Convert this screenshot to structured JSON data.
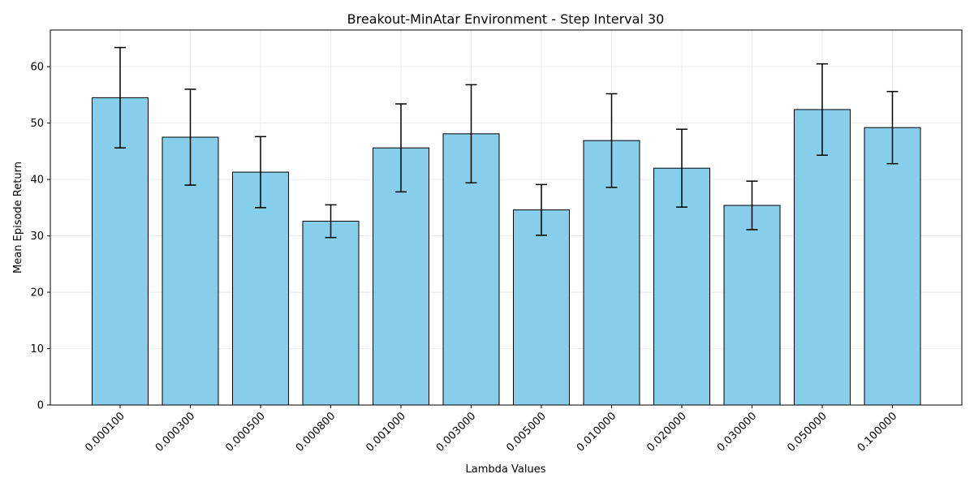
{
  "chart_data": {
    "type": "bar",
    "title": "Breakout-MinAtar Environment - Step Interval 30",
    "xlabel": "Lambda Values",
    "ylabel": "Mean Episode Return",
    "categories": [
      "0.000100",
      "0.000300",
      "0.000500",
      "0.000800",
      "0.001000",
      "0.003000",
      "0.005000",
      "0.010000",
      "0.020000",
      "0.030000",
      "0.050000",
      "0.100000"
    ],
    "values": [
      54.5,
      47.5,
      41.3,
      32.6,
      45.6,
      48.1,
      34.6,
      46.9,
      42.0,
      35.4,
      52.4,
      49.2
    ],
    "errors": [
      8.9,
      8.5,
      6.3,
      2.9,
      7.8,
      8.7,
      4.5,
      8.3,
      6.9,
      4.3,
      8.1,
      6.4
    ],
    "ylim": [
      0,
      66.5
    ],
    "yticks": [
      0,
      10,
      20,
      30,
      40,
      50,
      60
    ],
    "grid": true,
    "colors": {
      "bar": "#87ceeb",
      "edge": "#000000",
      "error": "#000000",
      "grid": "#e6e6e6"
    }
  }
}
